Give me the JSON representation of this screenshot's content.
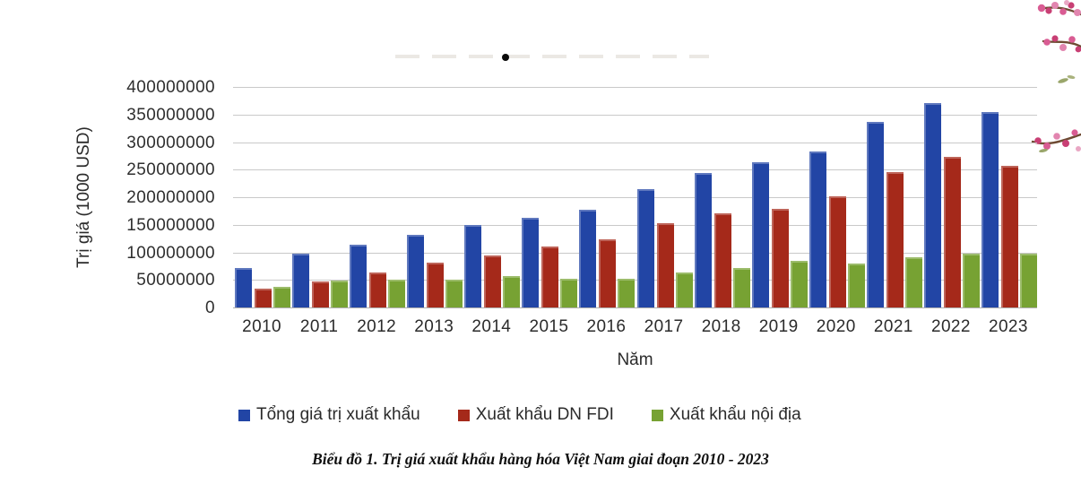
{
  "figure": {
    "caption": "Biểu đồ 1. Trị giá xuất khẩu hàng hóa Việt Nam giai đoạn 2010 - 2023"
  },
  "chart_data": {
    "type": "bar",
    "title": "",
    "xlabel": "Năm",
    "ylabel": "Trị giá (1000 USD)",
    "ylim": [
      0,
      400000000
    ],
    "ytick_interval": 50000000,
    "ytick_labels": [
      "400000000",
      "350000000",
      "300000000",
      "250000000",
      "200000000",
      "150000000",
      "100000000",
      "50000000",
      "0"
    ],
    "grid": true,
    "legend_position": "bottom",
    "categories": [
      "2010",
      "2011",
      "2012",
      "2013",
      "2014",
      "2015",
      "2016",
      "2017",
      "2018",
      "2019",
      "2020",
      "2021",
      "2022",
      "2023"
    ],
    "series": [
      {
        "name": "Tổng giá trị xuất khẩu",
        "key": "tong-gia-tri-xuat-khau",
        "color": "#2245a5",
        "values": [
          72200000,
          96900000,
          114500000,
          132000000,
          150200000,
          162000000,
          176600000,
          215100000,
          243500000,
          264200000,
          282700000,
          336300000,
          371300000,
          354700000
        ]
      },
      {
        "name": "Xuất khẩu DN FDI",
        "key": "xuat-khau-dn-fdi",
        "color": "#a5291a",
        "values": [
          34100000,
          47900000,
          64000000,
          80900000,
          94000000,
          110600000,
          123900000,
          152200000,
          171500000,
          179200000,
          202400000,
          245200000,
          273600000,
          257200000
        ]
      },
      {
        "name": "Xuất khẩu nội địa",
        "key": "xuat-khau-noi-dia",
        "color": "#77a233",
        "values": [
          38100000,
          49000000,
          50500000,
          51100000,
          56200000,
          51400000,
          52700000,
          62900000,
          72000000,
          85000000,
          80300000,
          91100000,
          97700000,
          97500000
        ]
      }
    ]
  }
}
